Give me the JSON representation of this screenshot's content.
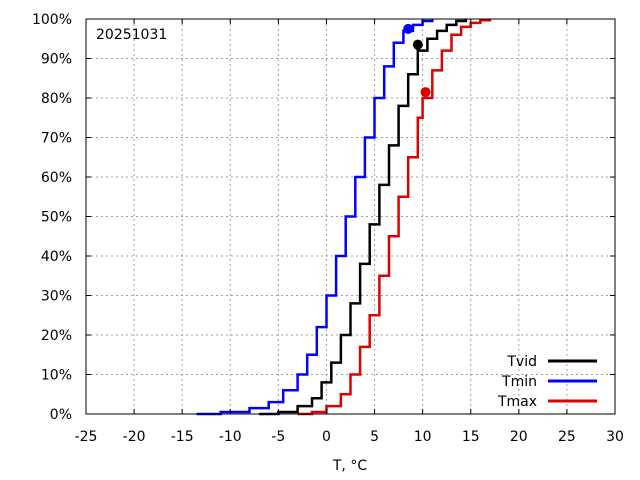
{
  "chart_data": {
    "type": "line",
    "annotation": "20251031",
    "xlabel": "T, °C",
    "ylabel": "",
    "xlim": [
      -25,
      30
    ],
    "ylim": [
      0,
      100
    ],
    "xticks": [
      -25,
      -20,
      -15,
      -10,
      -5,
      0,
      5,
      10,
      15,
      20,
      25,
      30
    ],
    "yticks": [
      "0%",
      "10%",
      "20%",
      "30%",
      "40%",
      "50%",
      "60%",
      "70%",
      "80%",
      "90%",
      "100%"
    ],
    "grid": true,
    "legend": "bottom-right",
    "y_unit": "%",
    "series": [
      {
        "name": "Tvid",
        "color": "#000000",
        "x": [
          -7.0,
          -5.0,
          -3.0,
          -1.5,
          -0.5,
          0.5,
          1.5,
          2.5,
          3.5,
          4.5,
          5.5,
          6.5,
          7.5,
          8.5,
          9.5,
          10.5,
          11.5,
          12.5,
          13.5,
          14.5
        ],
        "y": [
          0,
          0.5,
          2,
          4,
          8,
          13,
          20,
          28,
          38,
          48,
          58,
          68,
          78,
          86,
          92,
          95,
          97,
          98.5,
          99.5,
          100
        ],
        "marker": {
          "x": 9.5,
          "y": 93.5
        }
      },
      {
        "name": "Tmin",
        "color": "#0000ff",
        "x": [
          -13.5,
          -11.0,
          -8.0,
          -6.0,
          -4.5,
          -3.0,
          -2.0,
          -1.0,
          0.0,
          1.0,
          2.0,
          3.0,
          4.0,
          5.0,
          6.0,
          7.0,
          8.0,
          9.0,
          10.0,
          11.0
        ],
        "y": [
          0,
          0.5,
          1.5,
          3,
          6,
          10,
          15,
          22,
          30,
          40,
          50,
          60,
          70,
          80,
          88,
          94,
          97,
          98.5,
          99.5,
          100
        ],
        "marker": {
          "x": 8.5,
          "y": 97.5
        }
      },
      {
        "name": "Tmax",
        "color": "#dd0000",
        "x": [
          -3.0,
          -1.5,
          0.0,
          1.5,
          2.5,
          3.5,
          4.5,
          5.5,
          6.5,
          7.5,
          8.5,
          9.5,
          10.0,
          11.0,
          12.0,
          13.0,
          14.0,
          15.0,
          16.0,
          17.0
        ],
        "y": [
          0,
          0.5,
          2,
          5,
          10,
          17,
          25,
          35,
          45,
          55,
          65,
          75,
          80,
          87,
          92,
          96,
          98,
          99,
          99.7,
          100
        ],
        "marker": {
          "x": 10.3,
          "y": 81.5
        }
      }
    ]
  }
}
